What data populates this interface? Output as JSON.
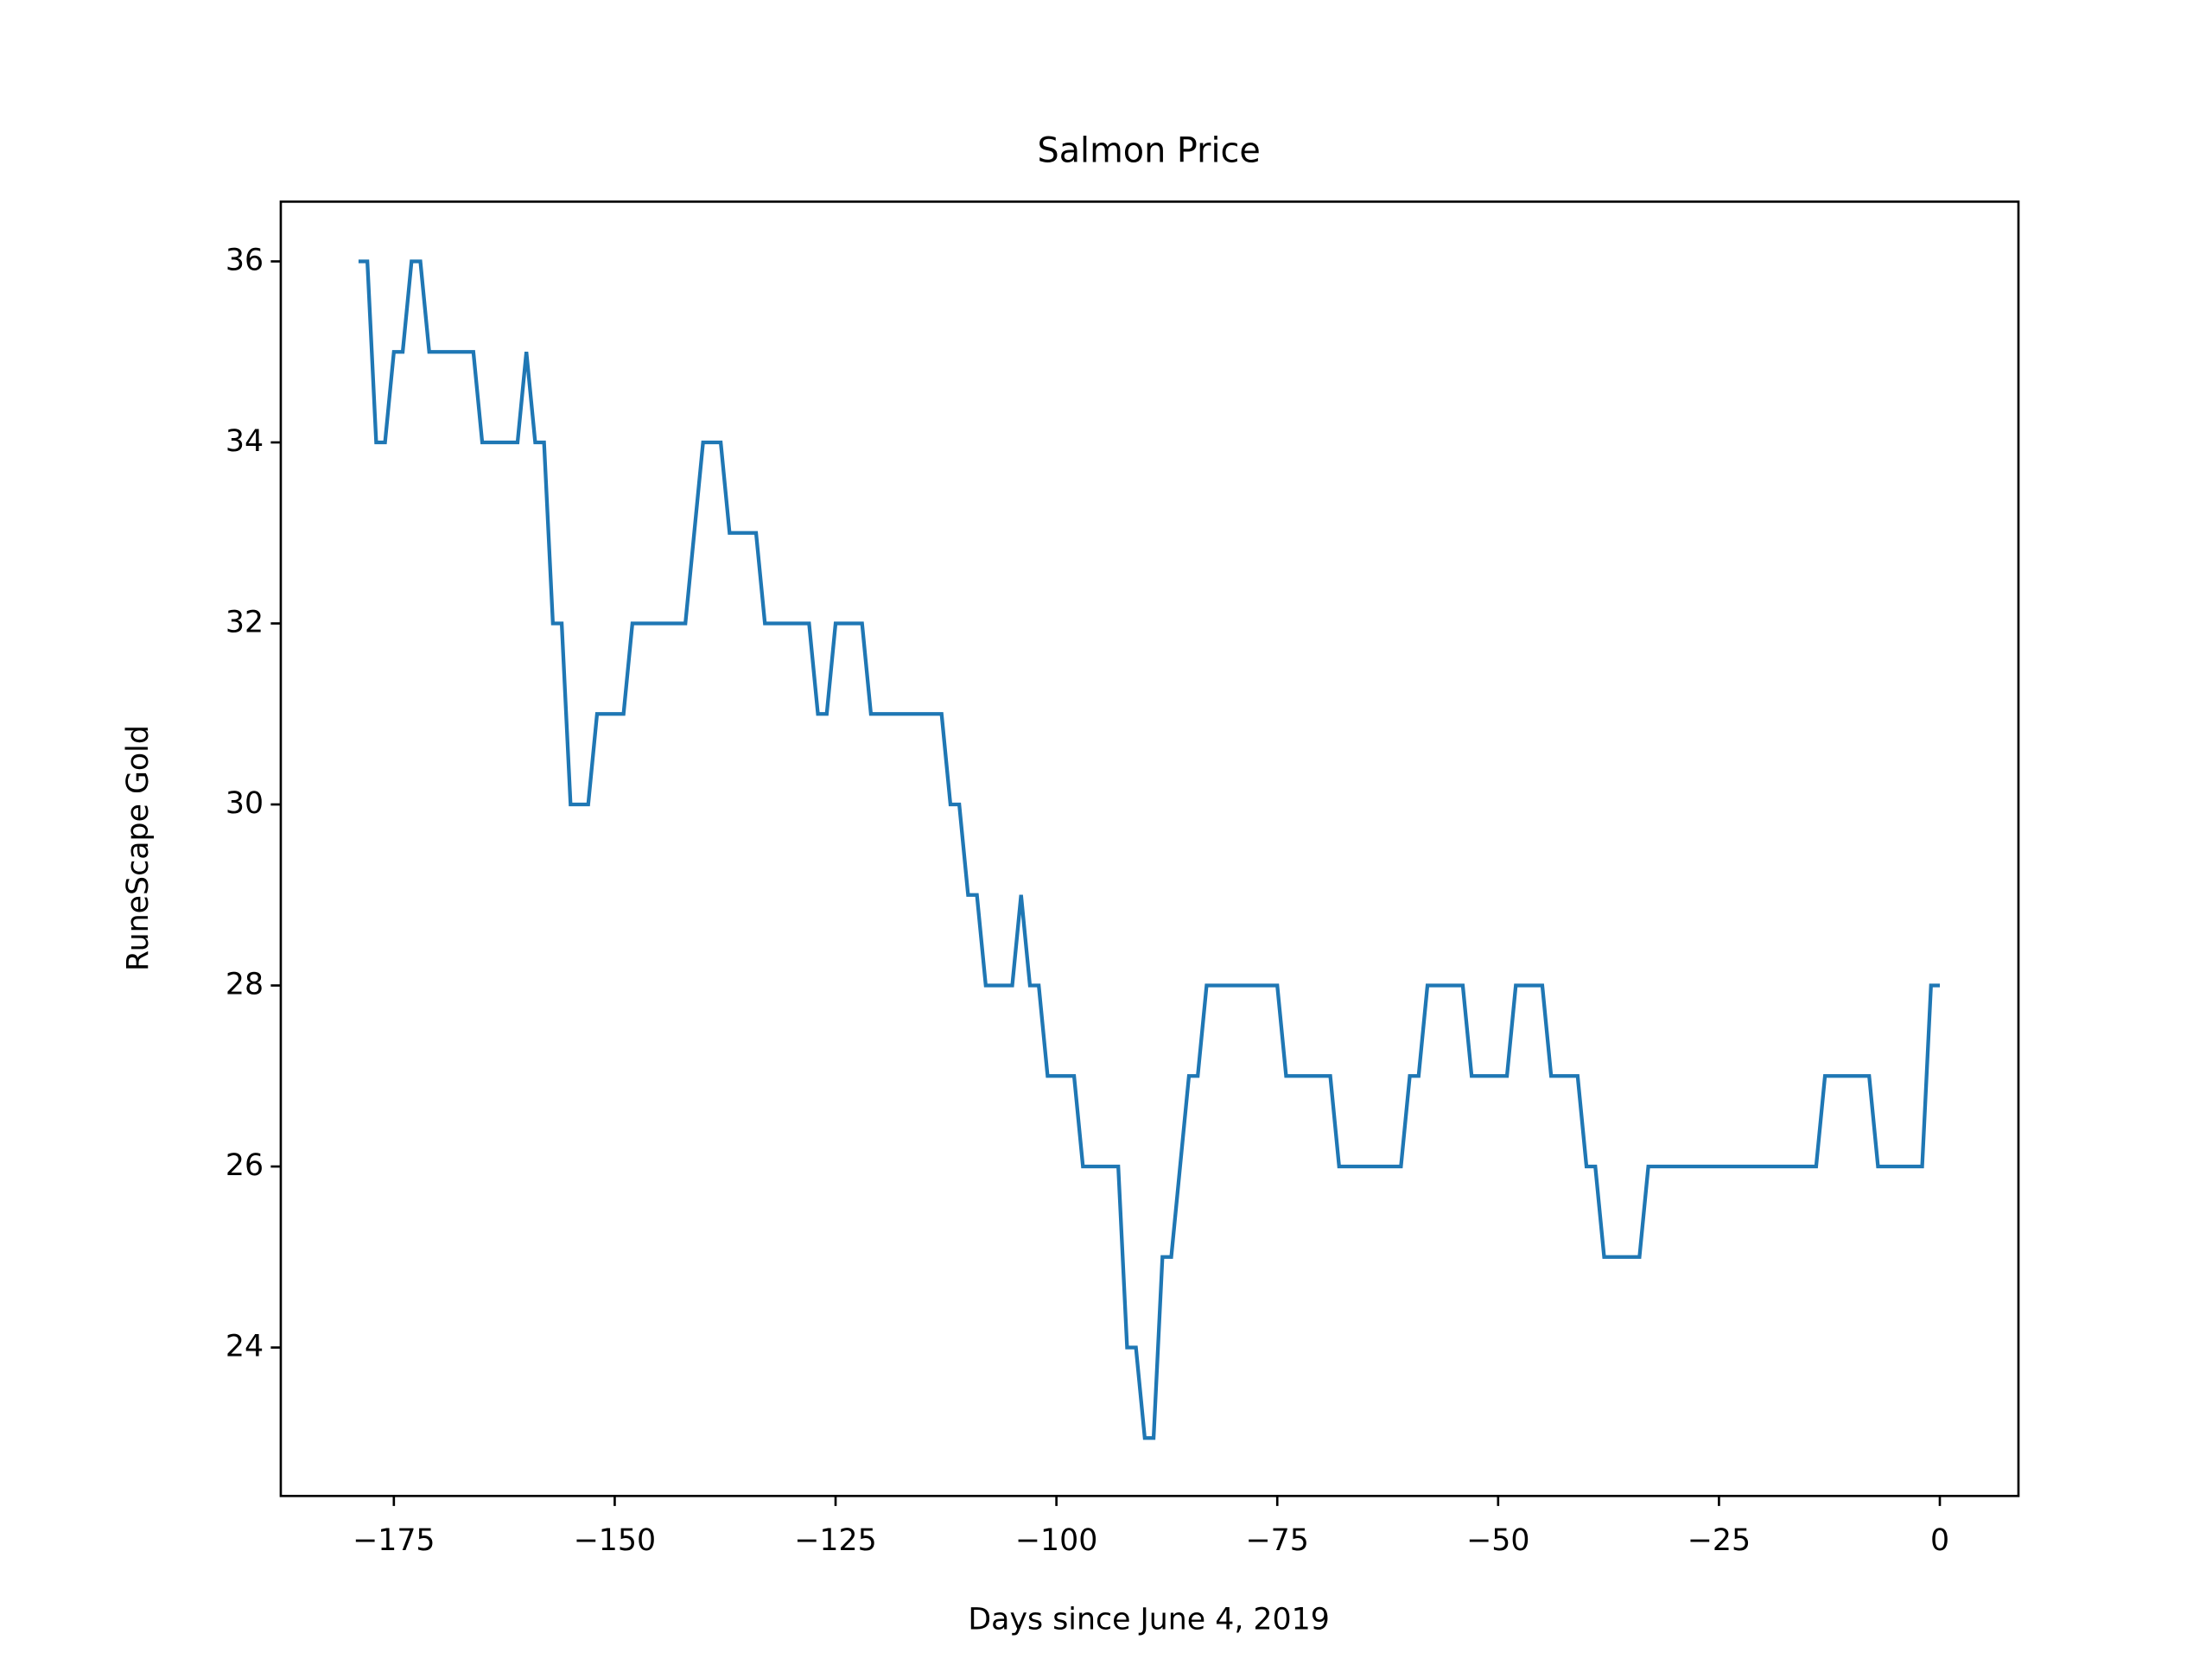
{
  "chart_data": {
    "type": "line",
    "title": "Salmon Price",
    "xlabel": "Days since June 4, 2019",
    "ylabel": "RuneScape Gold",
    "x": [
      -179,
      -178,
      -177,
      -176,
      -175,
      -174,
      -173,
      -172,
      -171,
      -170,
      -169,
      -168,
      -167,
      -166,
      -165,
      -164,
      -163,
      -162,
      -161,
      -160,
      -159,
      -158,
      -157,
      -156,
      -155,
      -154,
      -153,
      -152,
      -151,
      -150,
      -149,
      -148,
      -147,
      -146,
      -145,
      -144,
      -143,
      -142,
      -141,
      -140,
      -139,
      -138,
      -137,
      -136,
      -135,
      -134,
      -133,
      -132,
      -131,
      -130,
      -129,
      -128,
      -127,
      -126,
      -125,
      -124,
      -123,
      -122,
      -121,
      -120,
      -119,
      -118,
      -117,
      -116,
      -115,
      -114,
      -113,
      -112,
      -111,
      -110,
      -109,
      -108,
      -107,
      -106,
      -105,
      -104,
      -103,
      -102,
      -101,
      -100,
      -99,
      -98,
      -97,
      -96,
      -95,
      -94,
      -93,
      -92,
      -91,
      -90,
      -89,
      -88,
      -87,
      -86,
      -85,
      -84,
      -83,
      -82,
      -81,
      -80,
      -79,
      -78,
      -77,
      -76,
      -75,
      -74,
      -73,
      -72,
      -71,
      -70,
      -69,
      -68,
      -67,
      -66,
      -65,
      -64,
      -63,
      -62,
      -61,
      -60,
      -59,
      -58,
      -57,
      -56,
      -55,
      -54,
      -53,
      -52,
      -51,
      -50,
      -49,
      -48,
      -47,
      -46,
      -45,
      -44,
      -43,
      -42,
      -41,
      -40,
      -39,
      -38,
      -37,
      -36,
      -35,
      -34,
      -33,
      -32,
      -31,
      -30,
      -29,
      -28,
      -27,
      -26,
      -25,
      -24,
      -23,
      -22,
      -21,
      -20,
      -19,
      -18,
      -17,
      -16,
      -15,
      -14,
      -13,
      -12,
      -11,
      -10,
      -9,
      -8,
      -7,
      -6,
      -5,
      -4,
      -3,
      -2,
      -1,
      0
    ],
    "series": [
      {
        "color": "#1f77b4",
        "values": [
          36,
          36,
          34,
          34,
          35,
          35,
          36,
          36,
          35,
          35,
          35,
          35,
          35,
          35,
          34,
          34,
          34,
          34,
          34,
          35,
          34,
          34,
          32,
          32,
          30,
          30,
          30,
          31,
          31,
          31,
          31,
          32,
          32,
          32,
          32,
          32,
          32,
          32,
          33,
          34,
          34,
          34,
          33,
          33,
          33,
          33,
          32,
          32,
          32,
          32,
          32,
          32,
          31,
          31,
          32,
          32,
          32,
          32,
          31,
          31,
          31,
          31,
          31,
          31,
          31,
          31,
          31,
          30,
          30,
          29,
          29,
          28,
          28,
          28,
          28,
          29,
          28,
          28,
          27,
          27,
          27,
          27,
          26,
          26,
          26,
          26,
          26,
          24,
          24,
          23,
          23,
          25,
          25,
          26,
          27,
          27,
          28,
          28,
          28,
          28,
          28,
          28,
          28,
          28,
          28,
          27,
          27,
          27,
          27,
          27,
          27,
          26,
          26,
          26,
          26,
          26,
          26,
          26,
          26,
          27,
          27,
          28,
          28,
          28,
          28,
          28,
          27,
          27,
          27,
          27,
          27,
          28,
          28,
          28,
          28,
          27,
          27,
          27,
          27,
          26,
          26,
          25,
          25,
          25,
          25,
          25,
          26,
          26,
          26,
          26,
          26,
          26,
          26,
          26,
          26,
          26,
          26,
          26,
          26,
          26,
          26,
          26,
          26,
          26,
          26,
          26,
          27,
          27,
          27,
          27,
          27,
          27,
          26,
          26,
          26,
          26,
          26,
          26,
          28,
          28
        ]
      }
    ],
    "xlim": [
      -187.8,
      8.9
    ],
    "ylim": [
      22.36,
      36.66
    ],
    "xticks": [
      {
        "value": -175,
        "label": "−175"
      },
      {
        "value": -150,
        "label": "−150"
      },
      {
        "value": -125,
        "label": "−125"
      },
      {
        "value": -100,
        "label": "−100"
      },
      {
        "value": -75,
        "label": "−75"
      },
      {
        "value": -50,
        "label": "−50"
      },
      {
        "value": -25,
        "label": "−25"
      },
      0
    ],
    "yticks": [
      24,
      26,
      28,
      30,
      32,
      34,
      36
    ]
  }
}
